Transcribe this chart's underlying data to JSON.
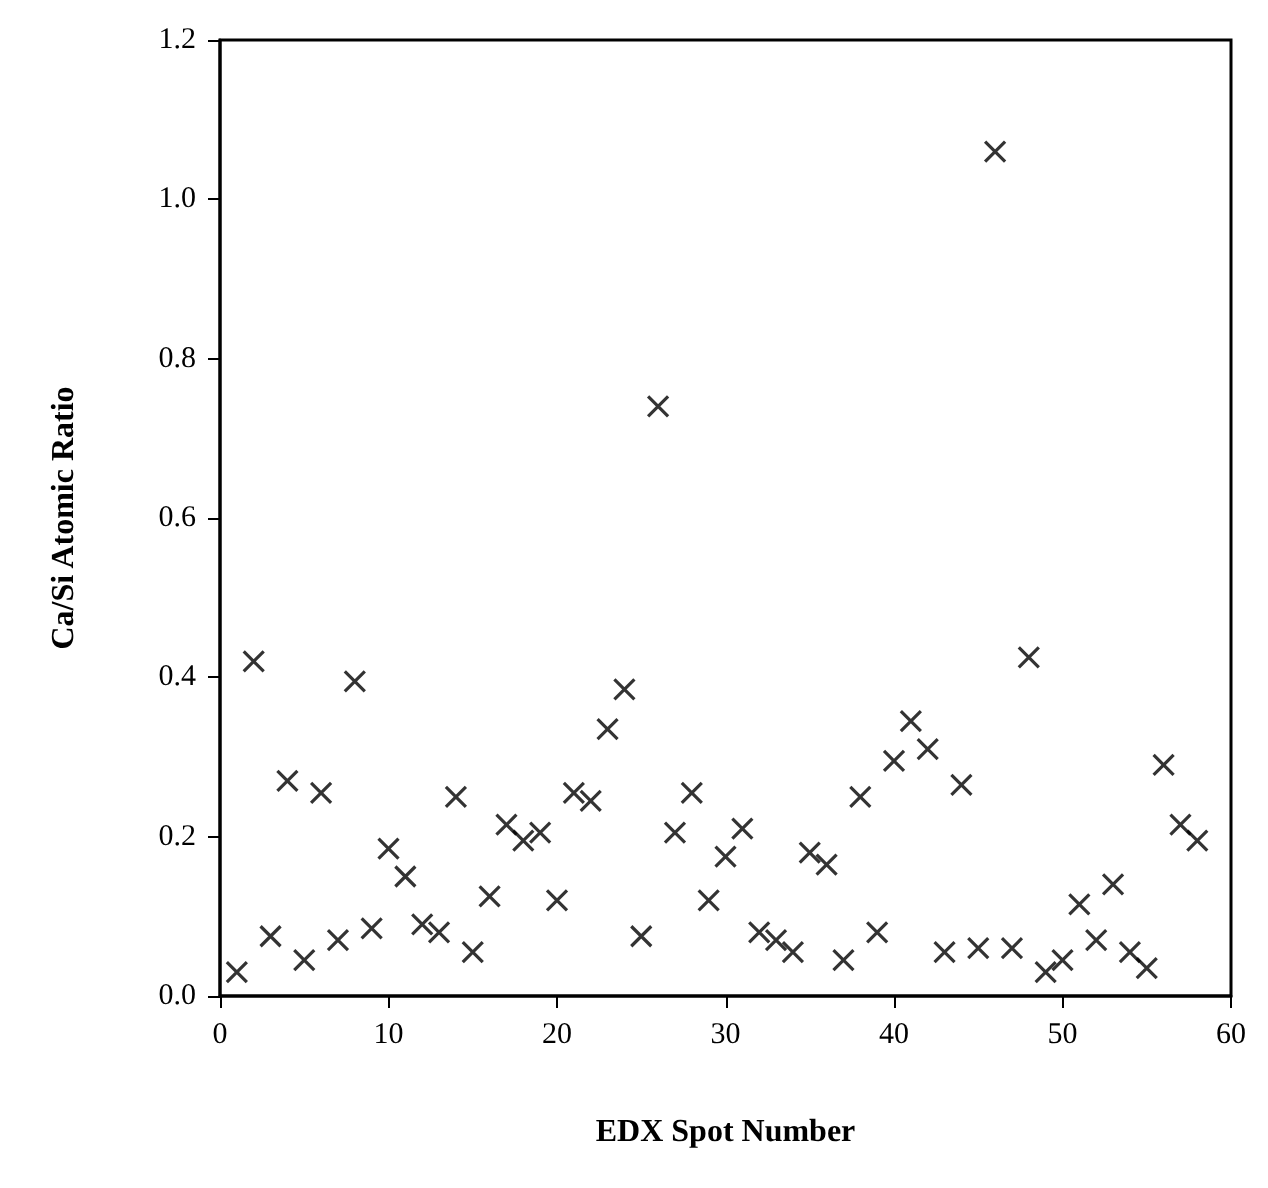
{
  "chart_data": {
    "type": "scatter",
    "xlabel": "EDX Spot Number",
    "ylabel": "Ca/Si Atomic Ratio",
    "x": [
      1,
      2,
      3,
      4,
      5,
      6,
      7,
      8,
      9,
      10,
      11,
      12,
      13,
      14,
      15,
      16,
      17,
      18,
      19,
      20,
      21,
      22,
      23,
      24,
      25,
      26,
      27,
      28,
      29,
      30,
      31,
      32,
      33,
      34,
      35,
      36,
      37,
      38,
      39,
      40,
      41,
      42,
      43,
      44,
      45,
      46,
      47,
      48,
      49,
      50,
      51,
      52,
      53,
      54,
      55,
      56,
      57,
      58
    ],
    "values": [
      0.03,
      0.42,
      0.075,
      0.27,
      0.045,
      0.255,
      0.07,
      0.395,
      0.085,
      0.185,
      0.15,
      0.09,
      0.08,
      0.25,
      0.055,
      0.125,
      0.215,
      0.195,
      0.205,
      0.12,
      0.255,
      0.245,
      0.335,
      0.385,
      0.075,
      0.74,
      0.205,
      0.255,
      0.12,
      0.175,
      0.21,
      0.08,
      0.07,
      0.055,
      0.18,
      0.165,
      0.045,
      0.25,
      0.08,
      0.295,
      0.345,
      0.31,
      0.055,
      0.265,
      0.06,
      1.06,
      0.06,
      0.425,
      0.03,
      0.045,
      0.115,
      0.07,
      0.14,
      0.055,
      0.035,
      0.29,
      0.215,
      0.195
    ],
    "color": "#000000",
    "marker": "cross",
    "grid": false,
    "xlim": [
      0,
      60
    ],
    "xticks": [
      0,
      10,
      20,
      30,
      40,
      50,
      60
    ],
    "ylim": [
      0,
      1.2
    ],
    "yticks": [
      {
        "value": 0,
        "label": "0.0"
      },
      0.2,
      0.4,
      0.6,
      0.8,
      {
        "value": 1,
        "label": "1.0"
      },
      {
        "value": 1.2,
        "label": "1.2"
      }
    ]
  }
}
